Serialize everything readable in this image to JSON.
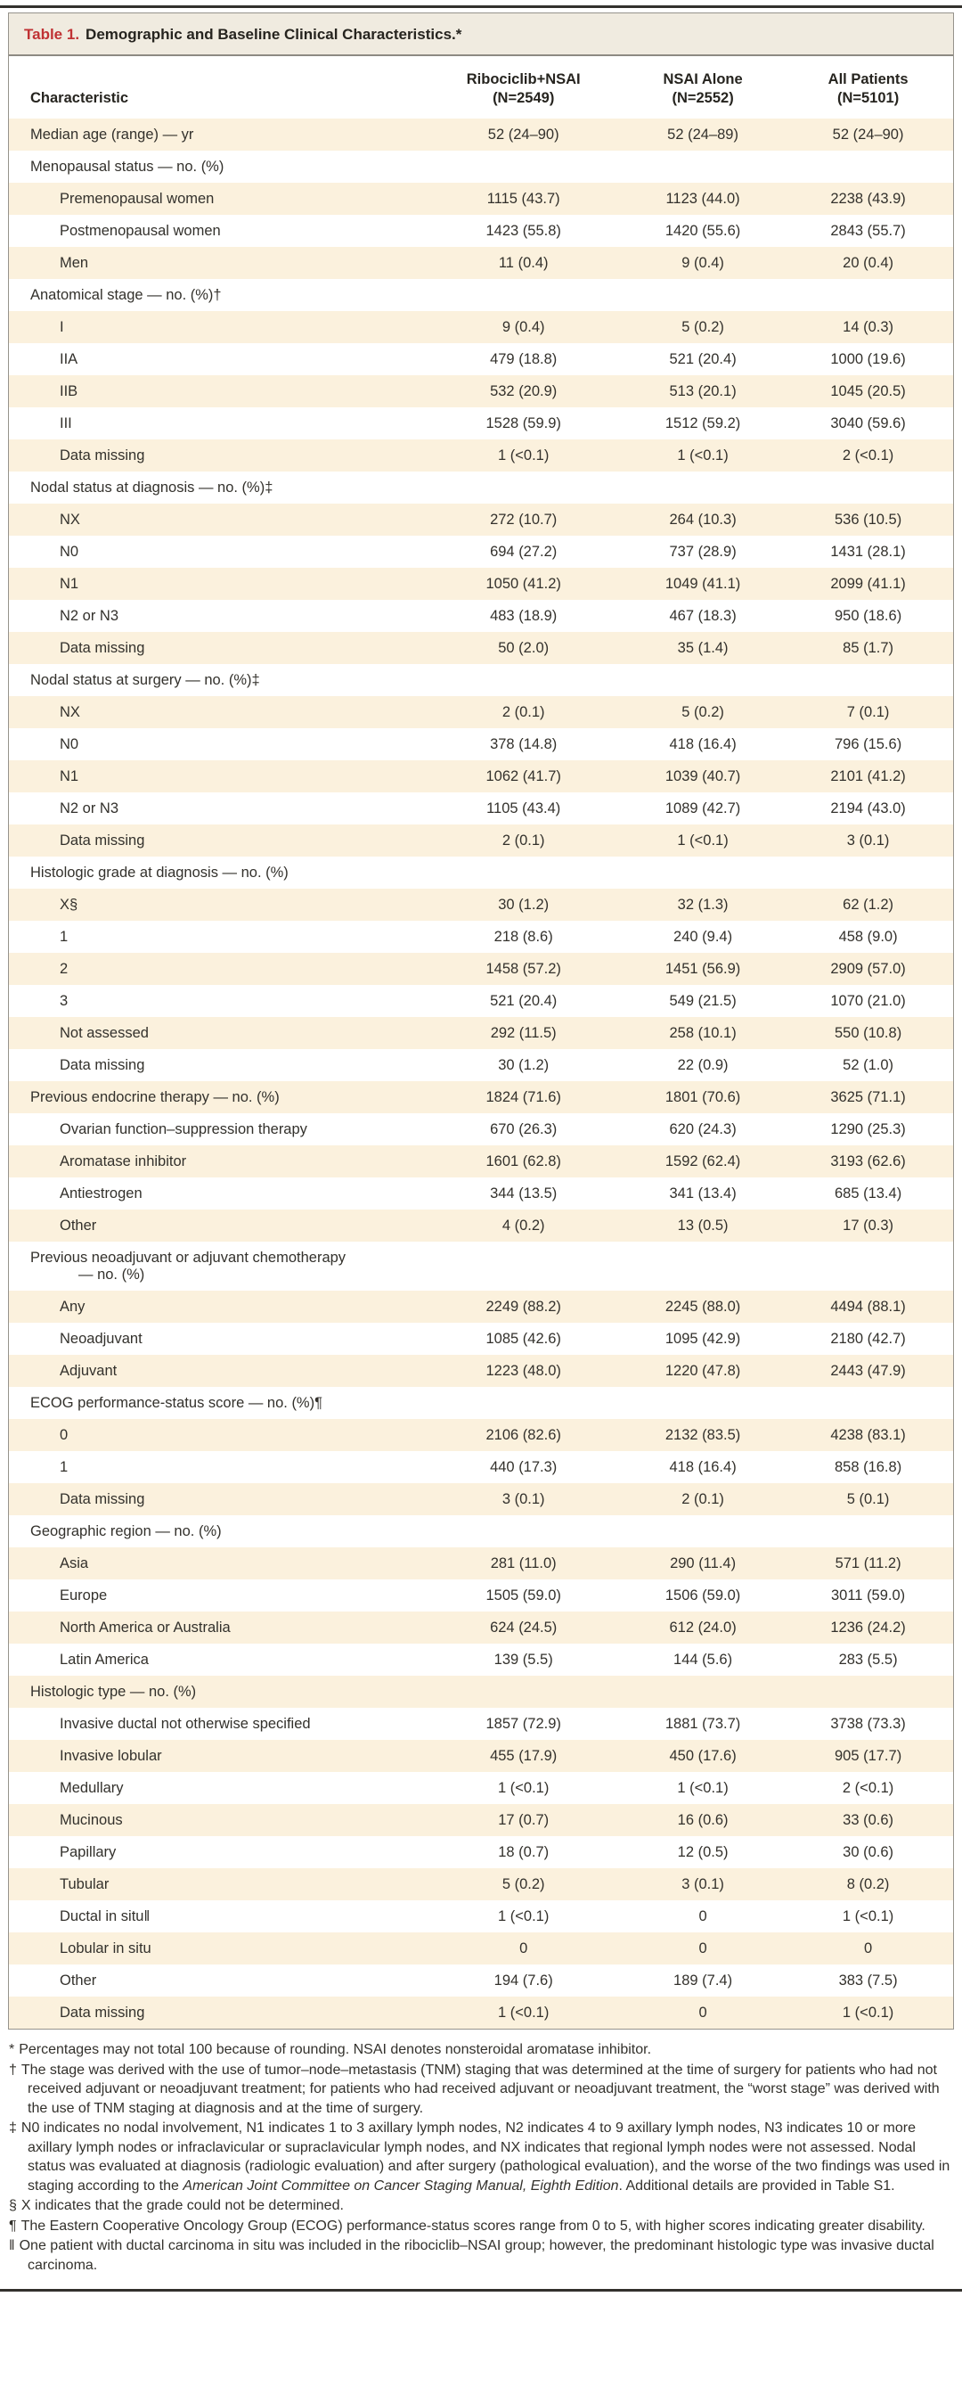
{
  "title": {
    "label": "Table 1.",
    "text": "Demographic and Baseline Clinical Characteristics.*"
  },
  "columns": [
    {
      "line1": "Characteristic",
      "line2": ""
    },
    {
      "line1": "Ribociclib+NSAI",
      "line2": "(N=2549)"
    },
    {
      "line1": "NSAI Alone",
      "line2": "(N=2552)"
    },
    {
      "line1": "All Patients",
      "line2": "(N=5101)"
    }
  ],
  "colors": {
    "stripe_beige": "#fbf1dd",
    "title_bar_bg": "#f0ebe0",
    "title_red": "#c03234",
    "border_gray": "#96938c",
    "rule_dark": "#33312d"
  },
  "table": {
    "rows": [
      {
        "l": "Median age (range) — yr",
        "ind": 0,
        "v": [
          "52 (24–90)",
          "52 (24–89)",
          "52 (24–90)"
        ]
      },
      {
        "l": "Menopausal status — no. (%)",
        "ind": 0,
        "v": [
          "",
          "",
          ""
        ]
      },
      {
        "l": "Premenopausal women",
        "ind": 1,
        "v": [
          "1115 (43.7)",
          "1123 (44.0)",
          "2238 (43.9)"
        ]
      },
      {
        "l": "Postmenopausal women",
        "ind": 1,
        "v": [
          "1423 (55.8)",
          "1420 (55.6)",
          "2843 (55.7)"
        ]
      },
      {
        "l": "Men",
        "ind": 1,
        "v": [
          "11 (0.4)",
          "9 (0.4)",
          "20 (0.4)"
        ]
      },
      {
        "l": "Anatomical stage — no. (%)†",
        "ind": 0,
        "v": [
          "",
          "",
          ""
        ]
      },
      {
        "l": "I",
        "ind": 1,
        "v": [
          "9 (0.4)",
          "5 (0.2)",
          "14 (0.3)"
        ]
      },
      {
        "l": "IIA",
        "ind": 1,
        "v": [
          "479 (18.8)",
          "521 (20.4)",
          "1000 (19.6)"
        ]
      },
      {
        "l": "IIB",
        "ind": 1,
        "v": [
          "532 (20.9)",
          "513 (20.1)",
          "1045 (20.5)"
        ]
      },
      {
        "l": "III",
        "ind": 1,
        "v": [
          "1528 (59.9)",
          "1512 (59.2)",
          "3040 (59.6)"
        ]
      },
      {
        "l": "Data missing",
        "ind": 1,
        "v": [
          "1 (<0.1)",
          "1 (<0.1)",
          "2 (<0.1)"
        ]
      },
      {
        "l": "Nodal status at diagnosis — no. (%)‡",
        "ind": 0,
        "v": [
          "",
          "",
          ""
        ]
      },
      {
        "l": "NX",
        "ind": 1,
        "v": [
          "272 (10.7)",
          "264 (10.3)",
          "536 (10.5)"
        ]
      },
      {
        "l": "N0",
        "ind": 1,
        "v": [
          "694 (27.2)",
          "737 (28.9)",
          "1431 (28.1)"
        ]
      },
      {
        "l": "N1",
        "ind": 1,
        "v": [
          "1050 (41.2)",
          "1049 (41.1)",
          "2099 (41.1)"
        ]
      },
      {
        "l": "N2 or N3",
        "ind": 1,
        "v": [
          "483 (18.9)",
          "467 (18.3)",
          "950 (18.6)"
        ]
      },
      {
        "l": "Data missing",
        "ind": 1,
        "v": [
          "50 (2.0)",
          "35 (1.4)",
          "85 (1.7)"
        ]
      },
      {
        "l": "Nodal status at surgery — no. (%)‡",
        "ind": 0,
        "v": [
          "",
          "",
          ""
        ]
      },
      {
        "l": "NX",
        "ind": 1,
        "v": [
          "2 (0.1)",
          "5 (0.2)",
          "7 (0.1)"
        ]
      },
      {
        "l": "N0",
        "ind": 1,
        "v": [
          "378 (14.8)",
          "418 (16.4)",
          "796 (15.6)"
        ]
      },
      {
        "l": "N1",
        "ind": 1,
        "v": [
          "1062 (41.7)",
          "1039 (40.7)",
          "2101 (41.2)"
        ]
      },
      {
        "l": "N2 or N3",
        "ind": 1,
        "v": [
          "1105 (43.4)",
          "1089 (42.7)",
          "2194 (43.0)"
        ]
      },
      {
        "l": "Data missing",
        "ind": 1,
        "v": [
          "2 (0.1)",
          "1 (<0.1)",
          "3 (0.1)"
        ]
      },
      {
        "l": "Histologic grade at diagnosis — no. (%)",
        "ind": 0,
        "v": [
          "",
          "",
          ""
        ]
      },
      {
        "l": "X§",
        "ind": 1,
        "v": [
          "30 (1.2)",
          "32 (1.3)",
          "62 (1.2)"
        ]
      },
      {
        "l": "1",
        "ind": 1,
        "v": [
          "218 (8.6)",
          "240 (9.4)",
          "458 (9.0)"
        ]
      },
      {
        "l": "2",
        "ind": 1,
        "v": [
          "1458 (57.2)",
          "1451 (56.9)",
          "2909 (57.0)"
        ]
      },
      {
        "l": "3",
        "ind": 1,
        "v": [
          "521 (20.4)",
          "549 (21.5)",
          "1070 (21.0)"
        ]
      },
      {
        "l": "Not assessed",
        "ind": 1,
        "v": [
          "292 (11.5)",
          "258 (10.1)",
          "550 (10.8)"
        ]
      },
      {
        "l": "Data missing",
        "ind": 1,
        "v": [
          "30 (1.2)",
          "22 (0.9)",
          "52 (1.0)"
        ]
      },
      {
        "l": "Previous endocrine therapy — no. (%)",
        "ind": 0,
        "v": [
          "1824 (71.6)",
          "1801 (70.6)",
          "3625 (71.1)"
        ]
      },
      {
        "l": "Ovarian function–suppression therapy",
        "ind": 1,
        "v": [
          "670 (26.3)",
          "620 (24.3)",
          "1290 (25.3)"
        ]
      },
      {
        "l": "Aromatase inhibitor",
        "ind": 1,
        "v": [
          "1601 (62.8)",
          "1592 (62.4)",
          "3193 (62.6)"
        ]
      },
      {
        "l": "Antiestrogen",
        "ind": 1,
        "v": [
          "344 (13.5)",
          "341 (13.4)",
          "685 (13.4)"
        ]
      },
      {
        "l": "Other",
        "ind": 1,
        "v": [
          "4 (0.2)",
          "13 (0.5)",
          "17 (0.3)"
        ]
      },
      {
        "l": "Previous neoadjuvant or adjuvant chemotherapy",
        "l2": "— no. (%)",
        "ind": 0,
        "v": [
          "",
          "",
          ""
        ]
      },
      {
        "l": "Any",
        "ind": 1,
        "v": [
          "2249 (88.2)",
          "2245 (88.0)",
          "4494 (88.1)"
        ]
      },
      {
        "l": "Neoadjuvant",
        "ind": 1,
        "v": [
          "1085 (42.6)",
          "1095 (42.9)",
          "2180 (42.7)"
        ]
      },
      {
        "l": "Adjuvant",
        "ind": 1,
        "v": [
          "1223 (48.0)",
          "1220 (47.8)",
          "2443 (47.9)"
        ]
      },
      {
        "l": "ECOG performance-status score — no. (%)¶",
        "ind": 0,
        "v": [
          "",
          "",
          ""
        ]
      },
      {
        "l": "0",
        "ind": 1,
        "v": [
          "2106 (82.6)",
          "2132 (83.5)",
          "4238 (83.1)"
        ]
      },
      {
        "l": "1",
        "ind": 1,
        "v": [
          "440 (17.3)",
          "418 (16.4)",
          "858 (16.8)"
        ]
      },
      {
        "l": "Data missing",
        "ind": 1,
        "v": [
          "3 (0.1)",
          "2 (0.1)",
          "5 (0.1)"
        ]
      },
      {
        "l": "Geographic region — no. (%)",
        "ind": 0,
        "v": [
          "",
          "",
          ""
        ]
      },
      {
        "l": "Asia",
        "ind": 1,
        "v": [
          "281 (11.0)",
          "290 (11.4)",
          "571 (11.2)"
        ]
      },
      {
        "l": "Europe",
        "ind": 1,
        "v": [
          "1505 (59.0)",
          "1506 (59.0)",
          "3011 (59.0)"
        ]
      },
      {
        "l": "North America or Australia",
        "ind": 1,
        "v": [
          "624 (24.5)",
          "612 (24.0)",
          "1236 (24.2)"
        ]
      },
      {
        "l": "Latin America",
        "ind": 1,
        "v": [
          "139 (5.5)",
          "144 (5.6)",
          "283 (5.5)"
        ]
      },
      {
        "l": "Histologic type — no. (%)",
        "ind": 0,
        "v": [
          "",
          "",
          ""
        ]
      },
      {
        "l": "Invasive ductal not otherwise specified",
        "ind": 1,
        "v": [
          "1857 (72.9)",
          "1881 (73.7)",
          "3738 (73.3)"
        ]
      },
      {
        "l": "Invasive lobular",
        "ind": 1,
        "v": [
          "455 (17.9)",
          "450 (17.6)",
          "905 (17.7)"
        ]
      },
      {
        "l": "Medullary",
        "ind": 1,
        "v": [
          "1 (<0.1)",
          "1 (<0.1)",
          "2 (<0.1)"
        ]
      },
      {
        "l": "Mucinous",
        "ind": 1,
        "v": [
          "17 (0.7)",
          "16 (0.6)",
          "33 (0.6)"
        ]
      },
      {
        "l": "Papillary",
        "ind": 1,
        "v": [
          "18 (0.7)",
          "12 (0.5)",
          "30 (0.6)"
        ]
      },
      {
        "l": "Tubular",
        "ind": 1,
        "v": [
          "5 (0.2)",
          "3 (0.1)",
          "8 (0.2)"
        ]
      },
      {
        "l": "Ductal in situ‖",
        "ind": 1,
        "v": [
          "1 (<0.1)",
          "0",
          "1 (<0.1)"
        ]
      },
      {
        "l": "Lobular in situ",
        "ind": 1,
        "v": [
          "0",
          "0",
          "0"
        ]
      },
      {
        "l": "Other",
        "ind": 1,
        "v": [
          "194 (7.6)",
          "189 (7.4)",
          "383 (7.5)"
        ]
      },
      {
        "l": "Data missing",
        "ind": 1,
        "v": [
          "1 (<0.1)",
          "0",
          "1 (<0.1)"
        ]
      }
    ]
  },
  "footnotes": [
    {
      "marker": "*",
      "parts": [
        {
          "t": "Percentages may not total 100 because of rounding. NSAI denotes nonsteroidal aromatase inhibitor.",
          "i": false
        }
      ]
    },
    {
      "marker": "†",
      "parts": [
        {
          "t": "The stage was derived with the use of tumor–node–metastasis (TNM) staging that was determined at the time of surgery for patients who had not received adjuvant or neoadjuvant treatment; for patients who had received adjuvant or neoadjuvant treatment, the “worst stage” was derived with the use of TNM staging at diagnosis and at the time of surgery.",
          "i": false
        }
      ]
    },
    {
      "marker": "‡",
      "parts": [
        {
          "t": "N0 indicates no nodal involvement, N1 indicates 1 to 3 axillary lymph nodes, N2 indicates 4 to 9 axillary lymph nodes, N3 indicates 10 or more axillary lymph nodes or infraclavicular or supraclavicular lymph nodes, and NX indicates that regional lymph nodes were not assessed. Nodal status was evaluated at diagnosis (radiologic evaluation) and after surgery (pathological evaluation), and the worse of the two findings was used in staging according to the ",
          "i": false
        },
        {
          "t": "American Joint Committee on Cancer Staging Manual, Eighth Edition",
          "i": true
        },
        {
          "t": ". Additional details are provided in Table S1.",
          "i": false
        }
      ]
    },
    {
      "marker": "§",
      "parts": [
        {
          "t": "X indicates that the grade could not be determined.",
          "i": false
        }
      ]
    },
    {
      "marker": "¶",
      "parts": [
        {
          "t": "The Eastern Cooperative Oncology Group (ECOG) performance-status scores range from 0 to 5, with higher scores indicating greater disability.",
          "i": false
        }
      ]
    },
    {
      "marker": "‖",
      "parts": [
        {
          "t": "One patient with ductal carcinoma in situ was included in the ribociclib–NSAI group; however, the predominant histologic type was invasive ductal carcinoma.",
          "i": false
        }
      ]
    }
  ]
}
